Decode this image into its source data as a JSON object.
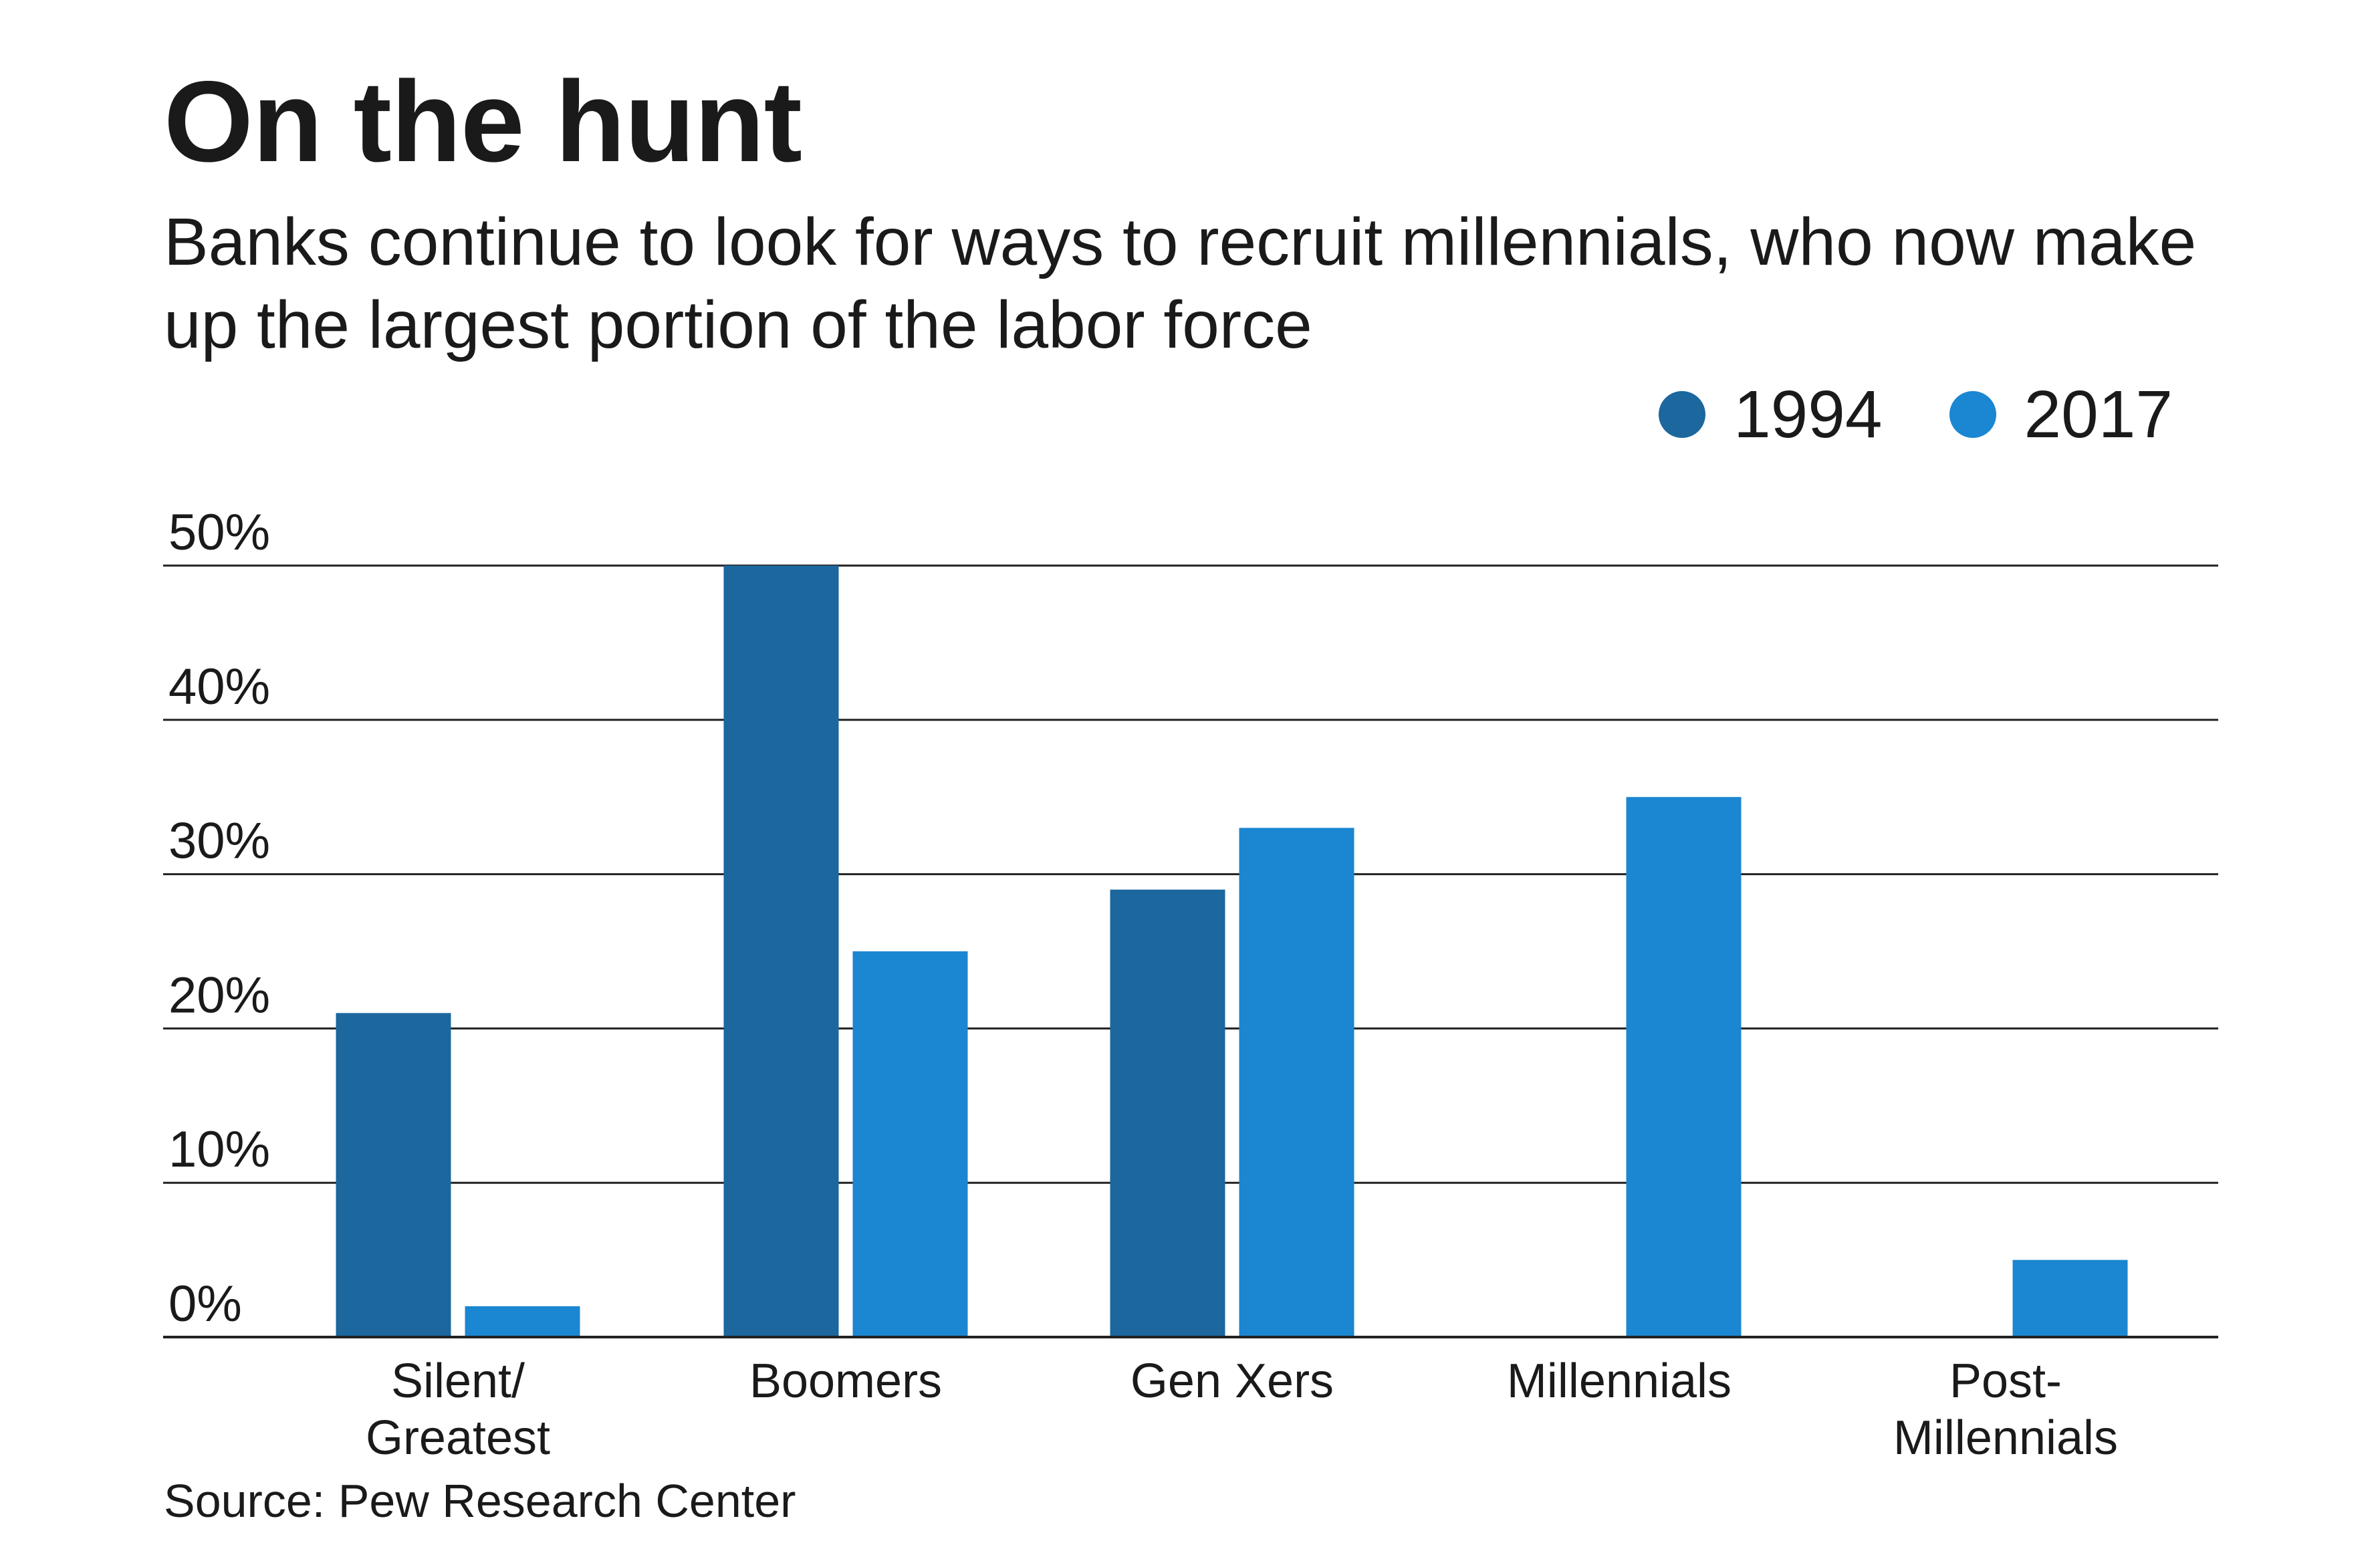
{
  "chart_data": {
    "type": "bar",
    "title": "On the hunt",
    "subtitle": "Banks continue to look for ways to recruit millennials, who now make up the largest portion of the labor force",
    "categories": [
      [
        "Silent/",
        "Greatest"
      ],
      [
        "Boomers"
      ],
      [
        "Gen Xers"
      ],
      [
        "Millennials"
      ],
      [
        "Post-",
        "Millennials"
      ]
    ],
    "series": [
      {
        "name": "1994",
        "color": "#1b679e",
        "values": [
          21,
          50,
          29,
          0,
          0
        ]
      },
      {
        "name": "2017",
        "color": "#1b86d1",
        "values": [
          2,
          25,
          33,
          35,
          5
        ]
      }
    ],
    "y_ticks": [
      {
        "value": 0,
        "label": "0%"
      },
      {
        "value": 10,
        "label": "10%"
      },
      {
        "value": 20,
        "label": "20%"
      },
      {
        "value": 30,
        "label": "30%"
      },
      {
        "value": 40,
        "label": "40%"
      },
      {
        "value": 50,
        "label": "50%"
      }
    ],
    "ylim": [
      0,
      50
    ],
    "xlabel": "",
    "ylabel": "",
    "grid": true,
    "legend_position": "top-right",
    "source": "Source: Pew Research Center"
  }
}
